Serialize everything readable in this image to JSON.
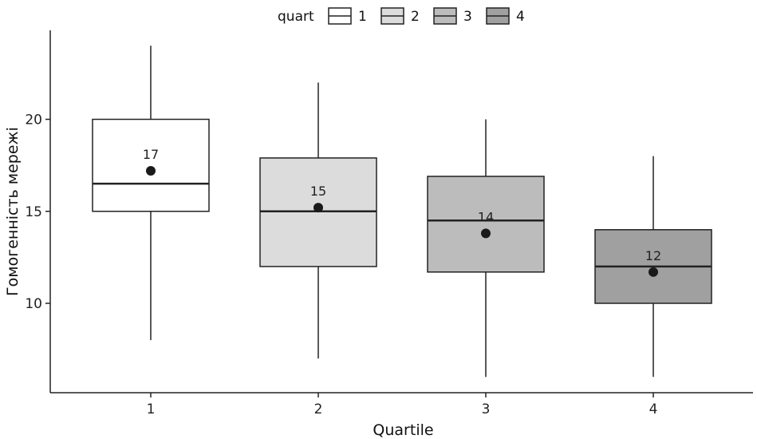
{
  "chart_data": {
    "type": "boxplot",
    "xlabel": "Quartile",
    "ylabel": "Гомогенність мережі",
    "categories": [
      "1",
      "2",
      "3",
      "4"
    ],
    "legend": {
      "title": "quart",
      "position": "top",
      "entries": [
        "1",
        "2",
        "3",
        "4"
      ]
    },
    "colors": [
      "#ffffff",
      "#dcdcdc",
      "#bcbcbc",
      "#a0a0a0"
    ],
    "boxes": [
      {
        "category": "1",
        "whisker_low": 8,
        "q1": 15,
        "median": 16.5,
        "q3": 20,
        "whisker_high": 24,
        "mean": 17.2,
        "mean_label": "17"
      },
      {
        "category": "2",
        "whisker_low": 7,
        "q1": 12,
        "median": 15,
        "q3": 17.9,
        "whisker_high": 22,
        "mean": 15.2,
        "mean_label": "15"
      },
      {
        "category": "3",
        "whisker_low": 6,
        "q1": 11.7,
        "median": 14.5,
        "q3": 16.9,
        "whisker_high": 20,
        "mean": 13.8,
        "mean_label": "14"
      },
      {
        "category": "4",
        "whisker_low": 6,
        "q1": 10,
        "median": 12,
        "q3": 14,
        "whisker_high": 18,
        "mean": 11.7,
        "mean_label": "12"
      }
    ],
    "yticks": [
      10,
      15,
      20
    ],
    "ylim": [
      5,
      25
    ]
  }
}
